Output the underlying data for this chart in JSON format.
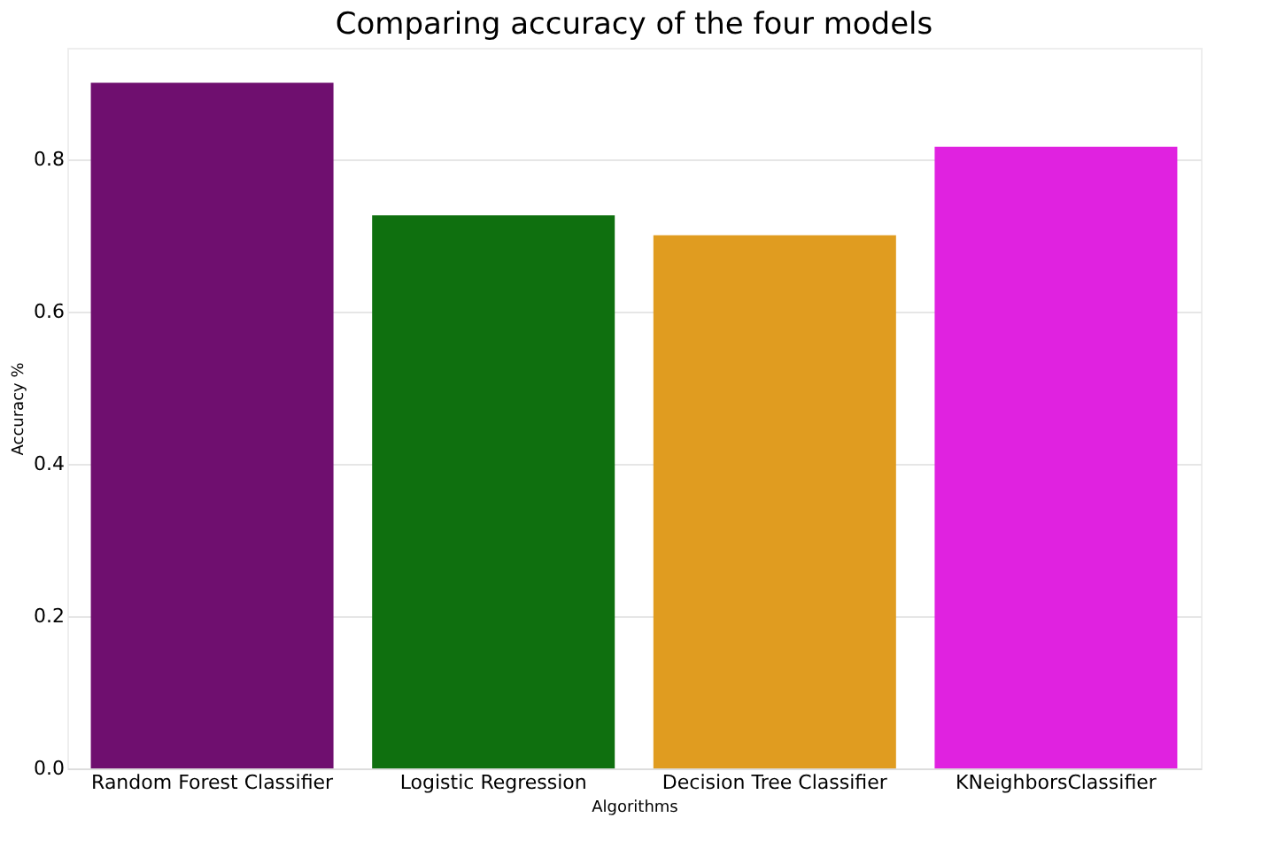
{
  "chart_data": {
    "type": "bar",
    "title": "Comparing accuracy of the four models",
    "xlabel": "Algorithms",
    "ylabel": "Accuracy %",
    "categories": [
      "Random Forest Classifier",
      "Logistic Regression",
      "Decision Tree Classifier",
      "KNeighborsClassifier"
    ],
    "values": [
      0.9,
      0.726,
      0.7,
      0.816
    ],
    "colors": [
      "#6f0f6f",
      "#0f700f",
      "#e09c20",
      "#e022e0"
    ],
    "ylim": [
      0,
      0.946
    ],
    "yticks": [
      {
        "value": 0,
        "label": "0.0"
      },
      {
        "value": 0.2,
        "label": "0.2"
      },
      {
        "value": 0.4,
        "label": "0.4"
      },
      {
        "value": 0.6,
        "label": "0.6"
      },
      {
        "value": 0.8,
        "label": "0.8"
      }
    ],
    "grid": "y",
    "legend": false
  }
}
